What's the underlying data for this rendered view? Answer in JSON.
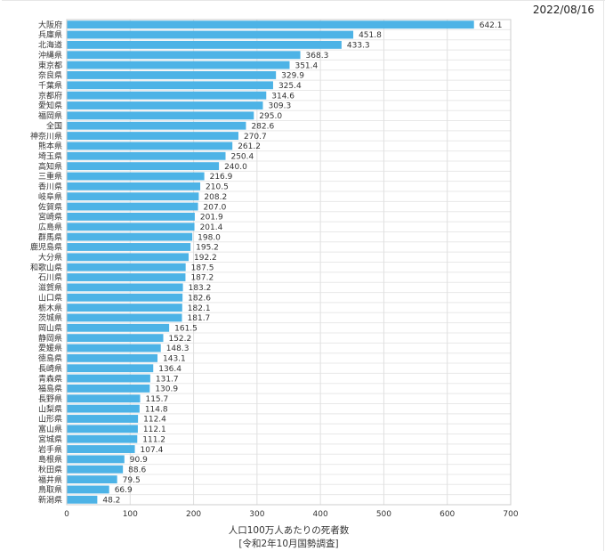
{
  "header": {
    "date": "2022/08/16"
  },
  "chart_data": {
    "type": "bar",
    "orientation": "horizontal",
    "title": "",
    "xlabel": "人口100万人あたりの死者数",
    "xlabel_note": "[令和2年10月国勢調査]",
    "xlim": [
      0,
      700
    ],
    "xticks": [
      0,
      100,
      200,
      300,
      400,
      500,
      600,
      700
    ],
    "grid": true,
    "legend": "none",
    "bar_color": "#4db3e6",
    "categories": [
      "大阪府",
      "兵庫県",
      "北海道",
      "沖縄県",
      "東京都",
      "奈良県",
      "千葉県",
      "京都府",
      "愛知県",
      "福岡県",
      "全国",
      "神奈川県",
      "熊本県",
      "埼玉県",
      "高知県",
      "三重県",
      "香川県",
      "岐阜県",
      "佐賀県",
      "宮崎県",
      "広島県",
      "群馬県",
      "鹿児島県",
      "大分県",
      "和歌山県",
      "石川県",
      "滋賀県",
      "山口県",
      "栃木県",
      "茨城県",
      "岡山県",
      "静岡県",
      "愛媛県",
      "徳島県",
      "長崎県",
      "青森県",
      "福島県",
      "長野県",
      "山梨県",
      "山形県",
      "富山県",
      "宮城県",
      "岩手県",
      "島根県",
      "秋田県",
      "福井県",
      "鳥取県",
      "新潟県"
    ],
    "values": [
      642.1,
      451.8,
      433.3,
      368.3,
      351.4,
      329.9,
      325.4,
      314.6,
      309.3,
      295.0,
      282.6,
      270.7,
      261.2,
      250.4,
      240.0,
      216.9,
      210.5,
      208.2,
      207.0,
      201.9,
      201.4,
      198.0,
      195.2,
      192.2,
      187.5,
      187.2,
      183.2,
      182.6,
      182.1,
      181.7,
      161.5,
      152.2,
      148.3,
      143.1,
      136.4,
      131.7,
      130.9,
      115.7,
      114.8,
      112.4,
      112.1,
      111.2,
      107.4,
      90.9,
      88.6,
      79.5,
      66.9,
      48.2
    ]
  }
}
